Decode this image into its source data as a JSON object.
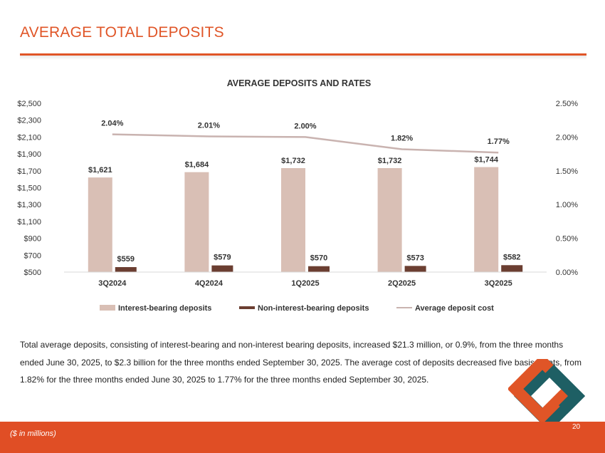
{
  "page": {
    "title": "AVERAGE TOTAL DEPOSITS",
    "body_text": "Total average deposits, consisting of interest-bearing and non-interest bearing deposits, increased $21.3 million, or 0.9%, from the three months ended June 30, 2025, to $2.3 billion for the three months ended September 30, 2025. The average cost of deposits decreased five basis points, from 1.82% for the three months ended June 30, 2025 to 1.77% for the three months ended September 30, 2025.",
    "footer_note": "($ in millions)",
    "page_number": "20"
  },
  "colors": {
    "accent": "#E05527",
    "footer": "#E04E25",
    "interest_bar": "#D9BFB5",
    "noninterest_bar": "#6B3E31",
    "rate_line": "#C9B3B0",
    "logo_teal": "#1E5F64"
  },
  "chart_data": {
    "type": "bar",
    "title": "AVERAGE DEPOSITS AND RATES",
    "categories": [
      "3Q2024",
      "4Q2024",
      "1Q2025",
      "2Q2025",
      "3Q2025"
    ],
    "series": [
      {
        "name": "Interest-bearing deposits",
        "values": [
          1621,
          1684,
          1732,
          1732,
          1744
        ],
        "labels": [
          "$1,621",
          "$1,684",
          "$1,732",
          "$1,732",
          "$1,744"
        ]
      },
      {
        "name": "Non-interest-bearing deposits",
        "values": [
          559,
          579,
          570,
          573,
          582
        ],
        "labels": [
          "$559",
          "$579",
          "$570",
          "$573",
          "$582"
        ]
      },
      {
        "name": "Average deposit cost",
        "type": "line",
        "axis": "right",
        "values": [
          2.04,
          2.01,
          2.0,
          1.82,
          1.77
        ],
        "labels": [
          "2.04%",
          "2.01%",
          "2.00%",
          "1.82%",
          "1.77%"
        ]
      }
    ],
    "ylim": [
      500,
      2500
    ],
    "y_ticks": [
      "$2,500",
      "$2,300",
      "$2,100",
      "$1,900",
      "$1,700",
      "$1,500",
      "$1,300",
      "$1,100",
      "$900",
      "$700",
      "$500"
    ],
    "y2lim": [
      0,
      2.5
    ],
    "y2_ticks": [
      "2.50%",
      "2.00%",
      "1.50%",
      "1.00%",
      "0.50%",
      "0.00%"
    ],
    "legend_position": "bottom"
  }
}
